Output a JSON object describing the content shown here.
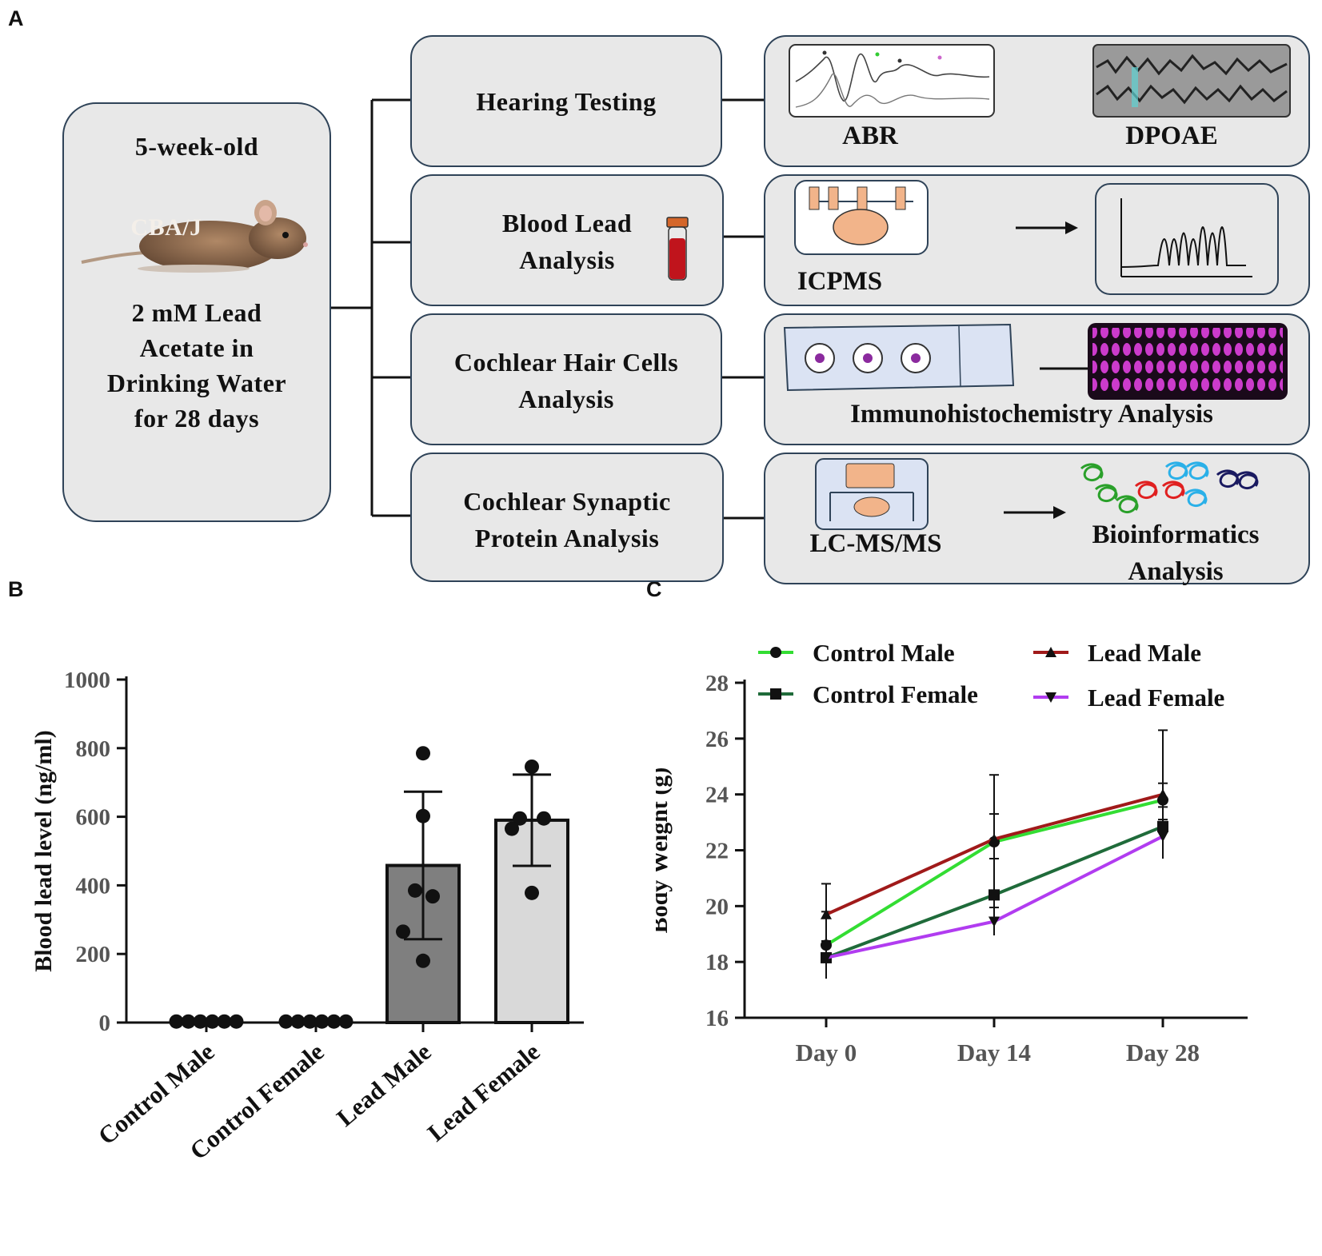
{
  "panels": {
    "a": "A",
    "b": "B",
    "c": "C"
  },
  "panel_a": {
    "left_box": {
      "age": "5-week-old",
      "strain": "CBA/J",
      "treatment_lines": [
        "2 mM Lead",
        "Acetate in",
        "Drinking Water",
        "for 28 days"
      ]
    },
    "steps": [
      {
        "lines": [
          "Hearing Testing"
        ],
        "outputs": [
          "ABR",
          "DPOAE"
        ]
      },
      {
        "lines": [
          "Blood Lead",
          "Analysis"
        ],
        "outputs": [
          "ICPMS"
        ]
      },
      {
        "lines": [
          "Cochlear Hair Cells",
          "Analysis"
        ],
        "outputs": [
          "Immunohistochemistry Analysis"
        ]
      },
      {
        "lines": [
          "Cochlear Synaptic",
          "Protein Analysis"
        ],
        "outputs": [
          "LC-MS/MS",
          "Bioinformatics",
          "Analysis"
        ]
      }
    ],
    "colors": {
      "box_fill": "#e8e8e8",
      "box_border": "#2f4358",
      "mouse": "#8a6a4e",
      "tissue": "#f2b48a",
      "stain": "#e040e0",
      "tube": "#c0141c"
    }
  },
  "chart_data": [
    {
      "type": "bar",
      "title": "",
      "xlabel": "",
      "ylabel": "Blood lead level (ng/ml)",
      "ylim": [
        0,
        1000
      ],
      "yticks": [
        0,
        200,
        400,
        600,
        800,
        1000
      ],
      "categories": [
        "Control Male",
        "Control Female",
        "Lead Male",
        "Lead Female"
      ],
      "values": [
        0,
        0,
        458,
        590
      ],
      "error": [
        0,
        0,
        215,
        133
      ],
      "bar_colors": [
        "#ffffff",
        "#ffffff",
        "#7f7f7f",
        "#d9d9d9"
      ],
      "points": [
        [
          3,
          3,
          3,
          3,
          3,
          3
        ],
        [
          3,
          3,
          3,
          3,
          3,
          3
        ],
        [
          785,
          602,
          385,
          368,
          265,
          180
        ],
        [
          746,
          595,
          595,
          565,
          378
        ]
      ]
    },
    {
      "type": "line",
      "title": "",
      "xlabel": "",
      "ylabel": "Body Weight (g)",
      "ylim": [
        16,
        28
      ],
      "yticks": [
        16,
        18,
        20,
        22,
        24,
        26,
        28
      ],
      "categories": [
        "Day 0",
        "Day 14",
        "Day 28"
      ],
      "legend_position": "top",
      "series": [
        {
          "name": "Control Male",
          "marker": "circle",
          "color": "#33dd33",
          "values": [
            18.6,
            22.3,
            23.8
          ],
          "error": [
            1.2,
            1.0,
            0.6
          ]
        },
        {
          "name": "Control Female",
          "marker": "square",
          "color": "#1f6b3a",
          "values": [
            18.15,
            20.4,
            22.85
          ],
          "error": [
            0.6,
            1.3,
            0.7
          ]
        },
        {
          "name": "Lead Male",
          "marker": "triangle-up",
          "color": "#a01a1a",
          "values": [
            19.7,
            22.4,
            24.0
          ],
          "error": [
            1.1,
            2.3,
            2.3
          ]
        },
        {
          "name": "Lead Female",
          "marker": "triangle-down",
          "color": "#b13cf0",
          "values": [
            18.15,
            19.45,
            22.5
          ],
          "error": [
            0.6,
            0.5,
            0.6
          ]
        }
      ]
    }
  ]
}
